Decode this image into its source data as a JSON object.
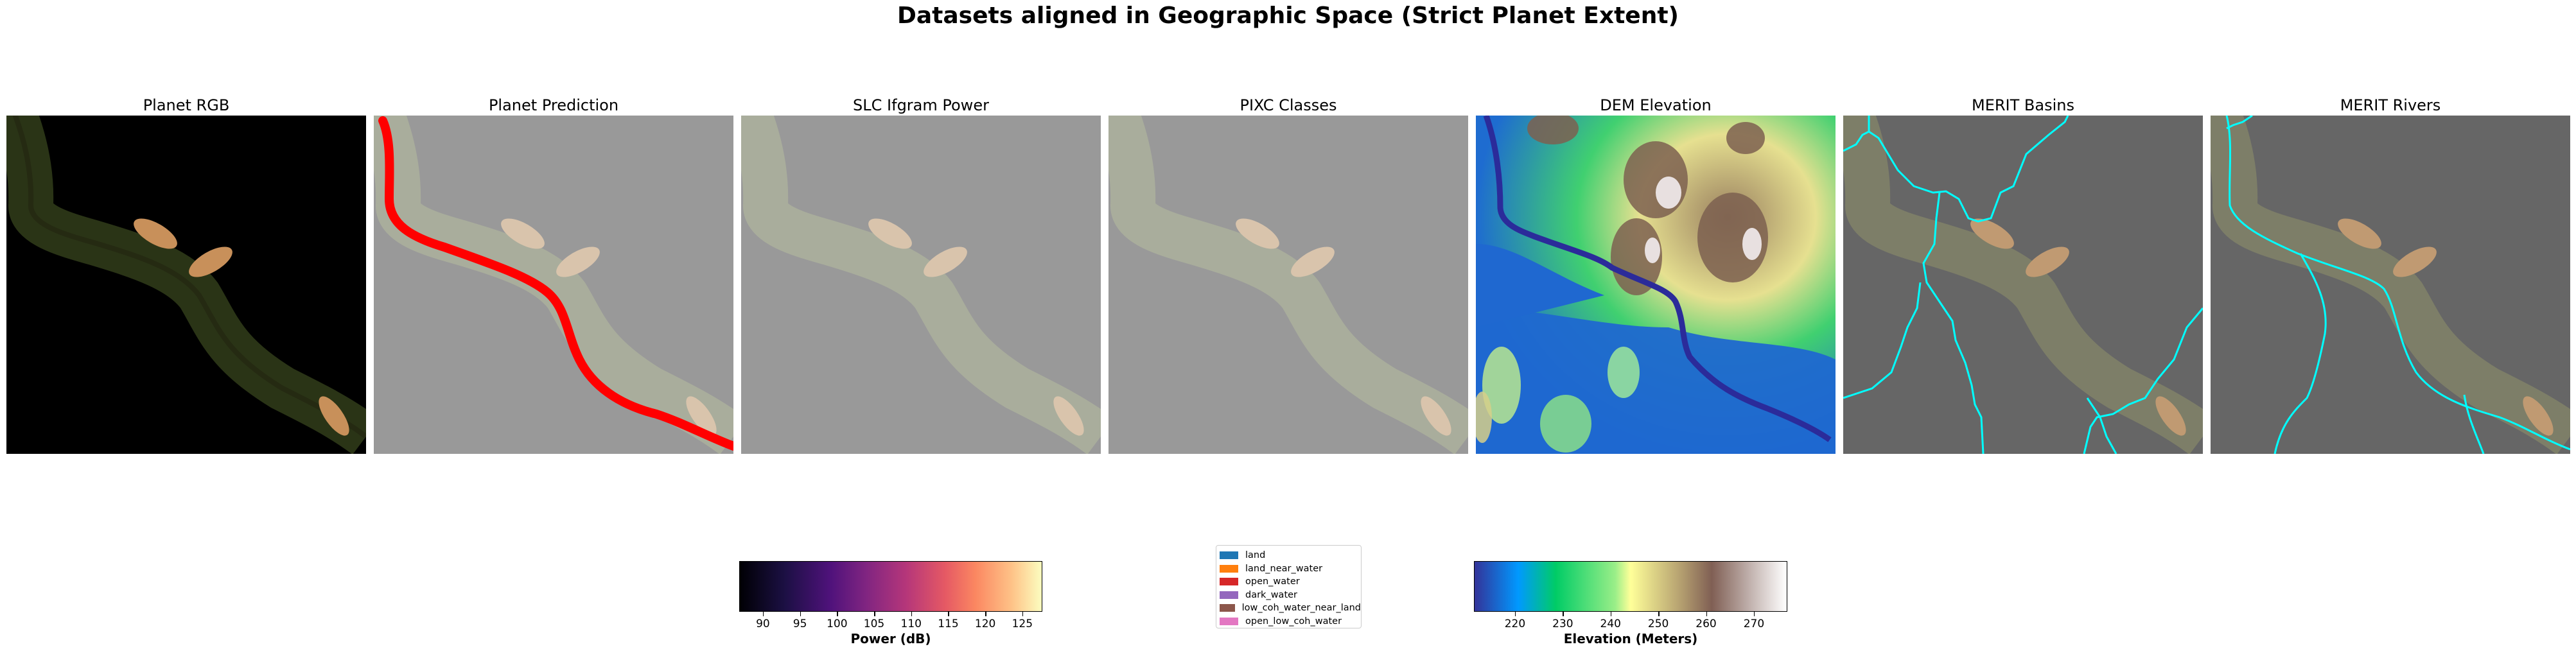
{
  "figure": {
    "title": "Datasets aligned in Geographic Space (Strict Planet Extent)"
  },
  "panels": [
    {
      "title": "Planet RGB"
    },
    {
      "title": "Planet Prediction"
    },
    {
      "title": "SLC Ifgram Power"
    },
    {
      "title": "PIXC Classes"
    },
    {
      "title": "DEM Elevation"
    },
    {
      "title": "MERIT Basins"
    },
    {
      "title": "MERIT Rivers"
    }
  ],
  "colors": {
    "prediction_water": "#ff0000",
    "merit_lines": "#00ffff",
    "dem_river": "#2b2b9a"
  },
  "power_colorbar": {
    "label": "Power (dB)",
    "colormap": "magma",
    "range": [
      86.8,
      127.7
    ],
    "ticks": [
      "90",
      "95",
      "100",
      "105",
      "110",
      "115",
      "120",
      "125"
    ]
  },
  "pixc_legend": {
    "items": [
      {
        "label": "land",
        "color": "#1f77b4"
      },
      {
        "label": "land_near_water",
        "color": "#ff7f0e"
      },
      {
        "label": "open_water",
        "color": "#d62728"
      },
      {
        "label": "dark_water",
        "color": "#9467bd"
      },
      {
        "label": "low_coh_water_near_land",
        "color": "#8c564b"
      },
      {
        "label": "open_low_coh_water",
        "color": "#e377c2"
      }
    ]
  },
  "elevation_colorbar": {
    "label": "Elevation (Meters)",
    "colormap": "terrain",
    "range": [
      211.4,
      277.0
    ],
    "ticks": [
      "220",
      "230",
      "240",
      "250",
      "260",
      "270"
    ]
  }
}
